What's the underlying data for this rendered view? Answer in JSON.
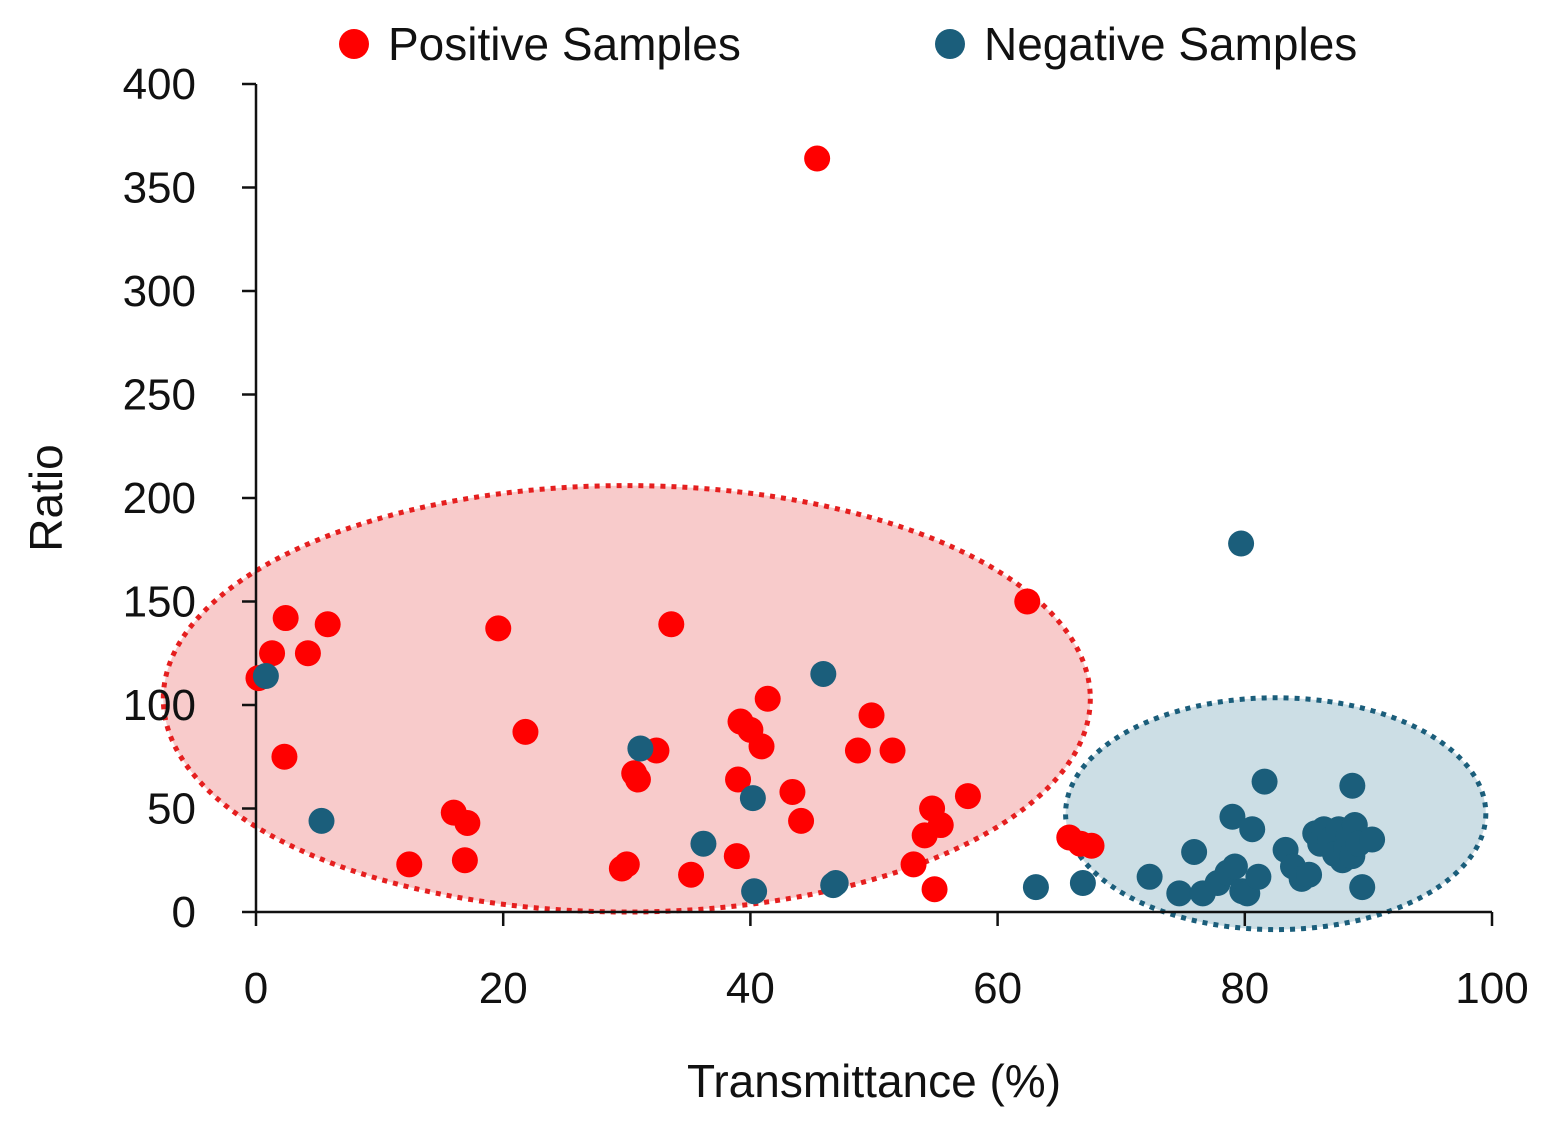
{
  "chart_data": {
    "type": "scatter",
    "title": "",
    "xlabel": "Transmittance (%)",
    "ylabel": "Ratio",
    "xlim": [
      0,
      100
    ],
    "ylim": [
      0,
      400
    ],
    "xticks": [
      0,
      20,
      40,
      60,
      80,
      100
    ],
    "yticks": [
      0,
      50,
      100,
      150,
      200,
      250,
      300,
      350,
      400
    ],
    "grid": false,
    "legend_position": "top",
    "series": [
      {
        "name": "Positive Samples",
        "color": "#ff0000",
        "points": [
          [
            0.2,
            113
          ],
          [
            1.3,
            125
          ],
          [
            2.4,
            142
          ],
          [
            4.2,
            125
          ],
          [
            5.8,
            139
          ],
          [
            2.3,
            75
          ],
          [
            12.4,
            23
          ],
          [
            16.0,
            48
          ],
          [
            17.1,
            43
          ],
          [
            16.9,
            25
          ],
          [
            19.6,
            137
          ],
          [
            21.8,
            87
          ],
          [
            29.6,
            21
          ],
          [
            30.0,
            23
          ],
          [
            30.6,
            67
          ],
          [
            30.9,
            64
          ],
          [
            32.4,
            78
          ],
          [
            33.6,
            139
          ],
          [
            35.2,
            18
          ],
          [
            39.0,
            64
          ],
          [
            39.2,
            92
          ],
          [
            40.0,
            88
          ],
          [
            40.9,
            80
          ],
          [
            41.4,
            103
          ],
          [
            43.4,
            58
          ],
          [
            44.1,
            44
          ],
          [
            45.4,
            364
          ],
          [
            48.7,
            78
          ],
          [
            49.8,
            95
          ],
          [
            51.5,
            78
          ],
          [
            53.2,
            23
          ],
          [
            54.1,
            37
          ],
          [
            54.7,
            50
          ],
          [
            55.4,
            42
          ],
          [
            54.9,
            11
          ],
          [
            57.6,
            56
          ],
          [
            62.4,
            150
          ],
          [
            65.8,
            36
          ],
          [
            66.7,
            33
          ],
          [
            67.6,
            32
          ],
          [
            38.9,
            27
          ]
        ]
      },
      {
        "name": "Negative Samples",
        "color": "#1b5e7b",
        "points": [
          [
            0.8,
            114
          ],
          [
            5.3,
            44
          ],
          [
            31.1,
            79
          ],
          [
            36.2,
            33
          ],
          [
            40.2,
            55
          ],
          [
            40.3,
            10
          ],
          [
            45.9,
            115
          ],
          [
            46.7,
            13
          ],
          [
            46.9,
            14
          ],
          [
            63.1,
            12
          ],
          [
            66.9,
            14
          ],
          [
            72.3,
            17
          ],
          [
            74.7,
            9
          ],
          [
            75.9,
            29
          ],
          [
            76.6,
            9
          ],
          [
            77.8,
            14
          ],
          [
            78.6,
            19
          ],
          [
            79.2,
            22
          ],
          [
            79.0,
            46
          ],
          [
            79.8,
            10
          ],
          [
            80.2,
            9
          ],
          [
            80.6,
            40
          ],
          [
            81.1,
            17
          ],
          [
            81.6,
            63
          ],
          [
            79.7,
            178
          ],
          [
            83.3,
            30
          ],
          [
            83.9,
            22
          ],
          [
            84.6,
            16
          ],
          [
            85.2,
            18
          ],
          [
            85.7,
            38
          ],
          [
            86.1,
            33
          ],
          [
            86.4,
            40
          ],
          [
            86.9,
            35
          ],
          [
            87.3,
            28
          ],
          [
            87.6,
            40
          ],
          [
            87.9,
            25
          ],
          [
            88.2,
            31
          ],
          [
            88.4,
            37
          ],
          [
            88.7,
            27
          ],
          [
            88.9,
            42
          ],
          [
            89.2,
            33
          ],
          [
            89.5,
            12
          ],
          [
            90.3,
            35
          ],
          [
            88.7,
            61
          ]
        ]
      }
    ],
    "annotations": [
      {
        "shape": "ellipse",
        "label": "positive cluster",
        "center": [
          30,
          103
        ],
        "rx": 37.5,
        "ry": 103,
        "fill": "#f8c8c8",
        "stroke": "#e51f1f"
      },
      {
        "shape": "ellipse",
        "label": "negative cluster",
        "center": [
          82.5,
          47.5
        ],
        "rx": 17,
        "ry": 56,
        "fill": "#c3d8e0",
        "stroke": "#1b5e7b"
      }
    ]
  }
}
